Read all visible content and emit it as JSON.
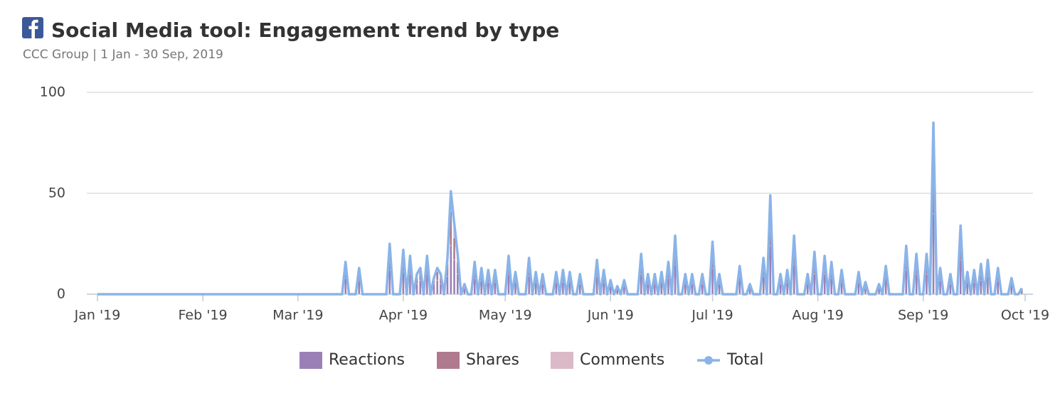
{
  "chart_data": {
    "type": "bar",
    "stacked": true,
    "title": "Social Media tool: Engagement trend by type",
    "subtitle": "CCC Group | 1 Jan - 30 Sep, 2019",
    "x": [
      0,
      72,
      73,
      74,
      76,
      77,
      78,
      85,
      86,
      87,
      89,
      90,
      91,
      92,
      93,
      94,
      95,
      96,
      97,
      98,
      99,
      100,
      101,
      102,
      103,
      104,
      105,
      106,
      107,
      108,
      109,
      110,
      111,
      112,
      113,
      114,
      115,
      116,
      117,
      118,
      120,
      121,
      122,
      123,
      124,
      126,
      127,
      128,
      129,
      130,
      131,
      132,
      134,
      135,
      136,
      137,
      138,
      139,
      140,
      141,
      142,
      143,
      146,
      147,
      148,
      149,
      150,
      151,
      152,
      153,
      154,
      155,
      156,
      159,
      160,
      161,
      162,
      163,
      164,
      165,
      166,
      167,
      168,
      169,
      170,
      171,
      172,
      173,
      174,
      175,
      176,
      177,
      178,
      179,
      180,
      181,
      182,
      183,
      184,
      188,
      189,
      190,
      191,
      192,
      193,
      195,
      196,
      197,
      198,
      199,
      200,
      201,
      202,
      203,
      204,
      205,
      206,
      208,
      209,
      210,
      211,
      212,
      213,
      214,
      215,
      216,
      217,
      218,
      219,
      220,
      223,
      224,
      225,
      226,
      227,
      229,
      230,
      231,
      232,
      233,
      237,
      238,
      239,
      240,
      241,
      242,
      243,
      244,
      245,
      246,
      247,
      248,
      249,
      250,
      251,
      252,
      253,
      254,
      255,
      256,
      257,
      258,
      259,
      260,
      261,
      262,
      263,
      264,
      265,
      266,
      268,
      269,
      270,
      271,
      272
    ],
    "xlim": [
      0,
      273
    ],
    "xticks": [
      {
        "value": 0,
        "label": "Jan '19"
      },
      {
        "value": 31,
        "label": "Feb '19"
      },
      {
        "value": 59,
        "label": "Mar '19"
      },
      {
        "value": 90,
        "label": "Apr '19"
      },
      {
        "value": 120,
        "label": "May '19"
      },
      {
        "value": 151,
        "label": "Jun '19"
      },
      {
        "value": 181,
        "label": "Jul '19"
      },
      {
        "value": 212,
        "label": "Aug '19"
      },
      {
        "value": 243,
        "label": "Sep '19"
      },
      {
        "value": 273,
        "label": "Oct '19"
      }
    ],
    "ylim": [
      0,
      100
    ],
    "yticks": [
      0,
      50,
      100
    ],
    "grid": true,
    "series": [
      {
        "name": "Reactions",
        "color": "#9b80b8",
        "values": [
          0,
          0,
          8,
          0,
          0,
          7,
          0,
          0,
          12,
          0,
          0,
          11,
          0,
          10,
          0,
          5,
          7,
          0,
          10,
          0,
          5,
          7,
          5,
          0,
          9,
          24,
          17,
          10,
          0,
          3,
          0,
          0,
          8,
          0,
          7,
          0,
          6,
          0,
          6,
          0,
          0,
          10,
          0,
          6,
          0,
          0,
          9,
          0,
          6,
          0,
          5,
          0,
          0,
          6,
          0,
          6,
          0,
          6,
          0,
          0,
          5,
          0,
          0,
          9,
          0,
          6,
          0,
          4,
          0,
          3,
          0,
          4,
          0,
          0,
          10,
          0,
          5,
          0,
          5,
          0,
          6,
          0,
          8,
          0,
          15,
          0,
          0,
          5,
          0,
          5,
          0,
          0,
          5,
          0,
          0,
          13,
          0,
          5,
          0,
          0,
          8,
          0,
          0,
          3,
          0,
          0,
          9,
          0,
          24,
          0,
          0,
          5,
          0,
          6,
          0,
          15,
          0,
          0,
          5,
          0,
          10,
          0,
          0,
          10,
          0,
          8,
          0,
          0,
          6,
          0,
          0,
          6,
          0,
          3,
          0,
          0,
          3,
          0,
          8,
          0,
          0,
          12,
          0,
          0,
          10,
          0,
          0,
          10,
          0,
          40,
          0,
          7,
          0,
          0,
          5,
          0,
          0,
          17,
          0,
          6,
          0,
          6,
          0,
          7,
          0,
          9,
          0,
          0,
          7,
          0,
          0,
          5,
          0,
          0,
          2
        ]
      },
      {
        "name": "Shares",
        "color": "#b07a8e",
        "values": [
          0,
          0,
          5,
          0,
          0,
          4,
          0,
          0,
          8,
          0,
          0,
          7,
          0,
          6,
          0,
          3,
          4,
          0,
          6,
          0,
          2,
          4,
          3,
          0,
          6,
          17,
          11,
          6,
          0,
          1,
          0,
          0,
          5,
          0,
          4,
          0,
          4,
          0,
          4,
          0,
          0,
          6,
          0,
          3,
          0,
          0,
          6,
          0,
          3,
          0,
          3,
          0,
          0,
          3,
          0,
          4,
          0,
          3,
          0,
          0,
          3,
          0,
          0,
          5,
          0,
          4,
          0,
          2,
          0,
          1,
          0,
          2,
          0,
          0,
          6,
          0,
          3,
          0,
          3,
          0,
          3,
          0,
          5,
          0,
          9,
          0,
          0,
          3,
          0,
          3,
          0,
          0,
          3,
          0,
          0,
          8,
          0,
          3,
          0,
          0,
          4,
          0,
          0,
          1,
          0,
          0,
          6,
          0,
          16,
          0,
          0,
          3,
          0,
          4,
          0,
          9,
          0,
          0,
          3,
          0,
          7,
          0,
          0,
          6,
          0,
          5,
          0,
          0,
          4,
          0,
          0,
          3,
          0,
          2,
          0,
          0,
          1,
          0,
          4,
          0,
          0,
          8,
          0,
          0,
          6,
          0,
          0,
          6,
          0,
          28,
          0,
          4,
          0,
          0,
          3,
          0,
          0,
          11,
          0,
          3,
          0,
          4,
          0,
          5,
          0,
          5,
          0,
          0,
          4,
          0,
          0,
          2,
          0,
          0,
          1
        ]
      },
      {
        "name": "Comments",
        "color": "#dbb9c6",
        "values": [
          0,
          0,
          3,
          0,
          0,
          2,
          0,
          0,
          5,
          0,
          0,
          4,
          0,
          3,
          0,
          2,
          2,
          0,
          3,
          0,
          1,
          2,
          2,
          0,
          3,
          10,
          7,
          4,
          0,
          1,
          0,
          0,
          3,
          0,
          2,
          0,
          2,
          0,
          2,
          0,
          0,
          3,
          0,
          2,
          0,
          0,
          3,
          0,
          2,
          0,
          2,
          0,
          0,
          2,
          0,
          2,
          0,
          2,
          0,
          0,
          2,
          0,
          0,
          3,
          0,
          2,
          0,
          1,
          0,
          0,
          0,
          1,
          0,
          0,
          4,
          0,
          2,
          0,
          2,
          0,
          2,
          0,
          3,
          0,
          5,
          0,
          0,
          2,
          0,
          2,
          0,
          0,
          2,
          0,
          0,
          5,
          0,
          2,
          0,
          0,
          2,
          0,
          0,
          1,
          0,
          0,
          3,
          0,
          9,
          0,
          0,
          2,
          0,
          2,
          0,
          5,
          0,
          0,
          2,
          0,
          4,
          0,
          0,
          3,
          0,
          3,
          0,
          0,
          2,
          0,
          0,
          2,
          0,
          1,
          0,
          0,
          1,
          0,
          2,
          0,
          0,
          4,
          0,
          0,
          4,
          0,
          0,
          4,
          0,
          17,
          0,
          2,
          0,
          0,
          2,
          0,
          0,
          6,
          0,
          2,
          0,
          2,
          0,
          3,
          0,
          3,
          0,
          0,
          2,
          0,
          0,
          1,
          0,
          0,
          0
        ]
      },
      {
        "name": "Total",
        "type": "line",
        "color": "#8ab4e8",
        "values": [
          0,
          0,
          16,
          0,
          0,
          13,
          0,
          0,
          25,
          0,
          0,
          22,
          0,
          19,
          0,
          10,
          13,
          0,
          19,
          0,
          8,
          13,
          10,
          0,
          18,
          51,
          35,
          20,
          0,
          5,
          0,
          0,
          16,
          0,
          13,
          0,
          12,
          0,
          12,
          0,
          0,
          19,
          0,
          11,
          0,
          0,
          18,
          0,
          11,
          0,
          10,
          0,
          0,
          11,
          0,
          12,
          0,
          11,
          0,
          0,
          10,
          0,
          0,
          17,
          0,
          12,
          0,
          7,
          0,
          4,
          0,
          7,
          0,
          0,
          20,
          0,
          10,
          0,
          10,
          0,
          11,
          0,
          16,
          0,
          29,
          0,
          0,
          10,
          0,
          10,
          0,
          0,
          10,
          0,
          0,
          26,
          0,
          10,
          0,
          0,
          14,
          0,
          0,
          5,
          0,
          0,
          18,
          0,
          49,
          0,
          0,
          10,
          0,
          12,
          0,
          29,
          0,
          0,
          10,
          0,
          21,
          0,
          0,
          19,
          0,
          16,
          0,
          0,
          12,
          0,
          0,
          11,
          0,
          6,
          0,
          0,
          5,
          0,
          14,
          0,
          0,
          24,
          0,
          0,
          20,
          0,
          0,
          20,
          0,
          85,
          0,
          13,
          0,
          0,
          10,
          0,
          0,
          34,
          0,
          11,
          0,
          12,
          0,
          15,
          0,
          17,
          0,
          0,
          13,
          0,
          0,
          8,
          0,
          0,
          3
        ]
      }
    ]
  }
}
